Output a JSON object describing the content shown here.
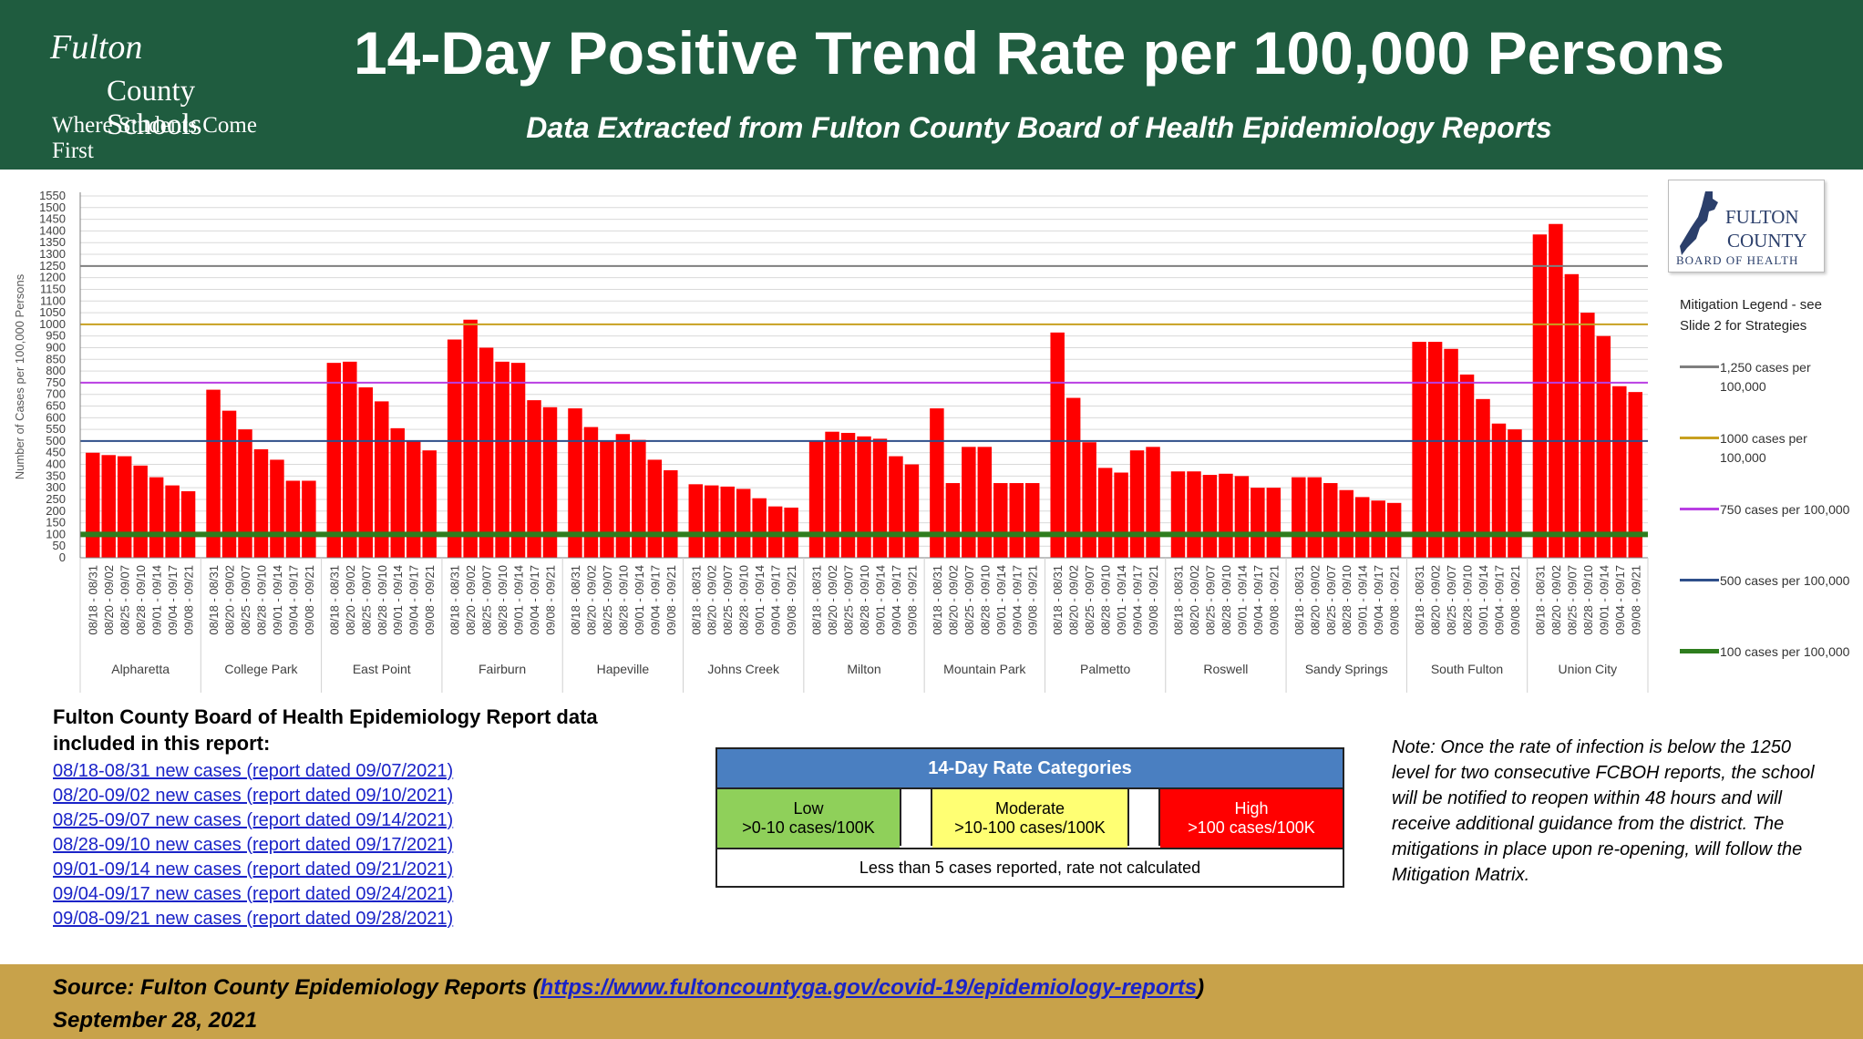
{
  "header": {
    "logo": {
      "line1": "Fulton",
      "line2": "County Schools",
      "tagline": "Where Students Come First"
    },
    "title": "14-Day Positive Trend Rate per 100,000 Persons",
    "subtitle": "Data Extracted from Fulton County Board of Health Epidemiology Reports"
  },
  "fcboh_logo": {
    "line1": "FULTON",
    "line2": "COUNTY",
    "line3": "BOARD OF HEALTH"
  },
  "chart_data": {
    "type": "bar",
    "title": "",
    "xlabel": "",
    "ylabel": "Number of Cases per 100,000 Persons",
    "ylim": [
      0,
      1550
    ],
    "yticks": [
      0,
      50,
      100,
      150,
      200,
      250,
      300,
      350,
      400,
      450,
      500,
      550,
      600,
      650,
      700,
      750,
      800,
      850,
      900,
      950,
      1000,
      1050,
      1100,
      1150,
      1200,
      1250,
      1300,
      1350,
      1400,
      1450,
      1500,
      1550
    ],
    "grid": true,
    "periods": [
      "08/18 - 08/31",
      "08/20 - 09/02",
      "08/25 - 09/07",
      "08/28 - 09/10",
      "09/01 - 09/14",
      "09/04 - 09/17",
      "09/08 - 09/21"
    ],
    "groups": [
      {
        "name": "Alpharetta",
        "values": [
          450,
          440,
          435,
          395,
          345,
          310,
          285
        ]
      },
      {
        "name": "College Park",
        "values": [
          720,
          630,
          550,
          465,
          420,
          330,
          330
        ]
      },
      {
        "name": "East Point",
        "values": [
          835,
          840,
          730,
          670,
          555,
          500,
          460
        ]
      },
      {
        "name": "Fairburn",
        "values": [
          935,
          1020,
          900,
          840,
          835,
          675,
          645
        ]
      },
      {
        "name": "Hapeville",
        "values": [
          640,
          560,
          500,
          530,
          505,
          420,
          375
        ]
      },
      {
        "name": "Johns Creek",
        "values": [
          315,
          310,
          305,
          295,
          255,
          220,
          215
        ]
      },
      {
        "name": "Milton",
        "values": [
          500,
          540,
          535,
          520,
          510,
          435,
          400
        ]
      },
      {
        "name": "Mountain Park",
        "values": [
          640,
          320,
          475,
          475,
          320,
          320,
          320
        ]
      },
      {
        "name": "Palmetto",
        "values": [
          965,
          685,
          495,
          385,
          365,
          460,
          475
        ]
      },
      {
        "name": "Roswell",
        "values": [
          370,
          370,
          355,
          360,
          350,
          300,
          300
        ]
      },
      {
        "name": "Sandy Springs",
        "values": [
          345,
          345,
          320,
          290,
          260,
          245,
          235
        ]
      },
      {
        "name": "South Fulton",
        "values": [
          925,
          925,
          895,
          785,
          680,
          575,
          550
        ]
      },
      {
        "name": "Union City",
        "values": [
          1385,
          1430,
          1215,
          1050,
          950,
          735,
          710
        ]
      }
    ],
    "reference_lines": [
      {
        "value": 1250,
        "color": "#7f7f7f",
        "label": "1,250 cases per 100,000"
      },
      {
        "value": 1000,
        "color": "#c8a020",
        "label": "1000 cases per 100,000"
      },
      {
        "value": 750,
        "color": "#b93fe3",
        "label": "750 cases per 100,000"
      },
      {
        "value": 500,
        "color": "#2f4f8a",
        "label": "500 cases per 100,000"
      },
      {
        "value": 100,
        "color": "#2e7d1e",
        "label": "100 cases per 100,000"
      }
    ],
    "bar_color": "#ff0000",
    "legend_title": "Mitigation Legend - see Slide 2 for Strategies",
    "legend_position": "right"
  },
  "sources": {
    "title": "Fulton County Board of Health Epidemiology Report data included in this report:",
    "items": [
      "08/18-08/31 new cases (report dated 09/07/2021)",
      "08/20-09/02 new cases (report dated 09/10/2021)",
      "08/25-09/07 new cases (report dated 09/14/2021)",
      "08/28-09/10 new cases (report dated 09/17/2021)",
      "09/01-09/14 new cases (report dated 09/21/2021)",
      "09/04-09/17 new cases (report dated 09/24/2021)",
      "09/08-09/21 new cases (report dated 09/28/2021)"
    ]
  },
  "categories": {
    "title": "14-Day Rate Categories",
    "low": {
      "name": "Low",
      "range": ">0-10 cases/100K",
      "color": "#8fd05a"
    },
    "moderate": {
      "name": "Moderate",
      "range": ">10-100 cases/100K",
      "color": "#ffff73"
    },
    "high": {
      "name": "High",
      "range": ">100 cases/100K",
      "color": "#ff0000"
    },
    "note": "Less than 5 cases reported, rate not calculated"
  },
  "note": "Note: Once the rate of infection is below the 1250 level for two consecutive FCBOH reports, the school will be notified to reopen within 48 hours and will receive additional guidance from the district.  The mitigations in place upon re-opening, will follow the Mitigation Matrix.",
  "footer": {
    "source_prefix": "Source:  Fulton County Epidemiology Reports (",
    "source_link": "https://www.fultoncountyga.gov/covid-19/epidemiology-reports",
    "source_suffix": ")",
    "date": "September 28, 2021"
  }
}
